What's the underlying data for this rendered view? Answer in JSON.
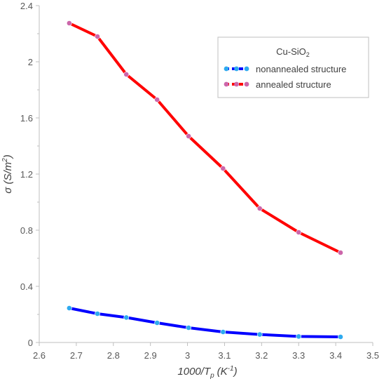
{
  "chart_data": {
    "type": "line",
    "legend_title": "Cu-SiO",
    "legend_title_sub": "2",
    "legend_placement": "top-right",
    "xlabel": "1000/T",
    "xlabel_sub": "p",
    "xlabel_unit": "(K",
    "xlabel_unit_sup": "-1",
    "xlabel_close": ")",
    "ylabel": "σ (S/m",
    "ylabel_sup": "2",
    "ylabel_close": ")",
    "xlim": [
      2.6,
      3.5
    ],
    "ylim": [
      0,
      2.4
    ],
    "x_ticks": [
      "2.6",
      "2.7",
      "2.8",
      "2.9",
      "3",
      "3.1",
      "3.2",
      "3.3",
      "3.4",
      "3.5"
    ],
    "y_ticks": [
      "0",
      "0.4",
      "0.8",
      "1.2",
      "1.6",
      "2",
      "2.4"
    ],
    "grid": false,
    "series": [
      {
        "name": "nonannealed structure",
        "line_color": "#0000ff",
        "marker_color": "#2eaaef",
        "x": [
          2.681,
          2.757,
          2.835,
          2.918,
          3.003,
          3.096,
          3.195,
          3.3,
          3.413
        ],
        "y": [
          0.245,
          0.205,
          0.178,
          0.14,
          0.105,
          0.075,
          0.057,
          0.043,
          0.04
        ]
      },
      {
        "name": "annealed structure",
        "line_color": "#ff0000",
        "marker_color": "#cc66aa",
        "x": [
          2.681,
          2.757,
          2.835,
          2.918,
          3.003,
          3.096,
          3.195,
          3.3,
          3.413
        ],
        "y": [
          2.275,
          2.18,
          1.91,
          1.73,
          1.47,
          1.24,
          0.955,
          0.785,
          0.64
        ]
      }
    ]
  }
}
